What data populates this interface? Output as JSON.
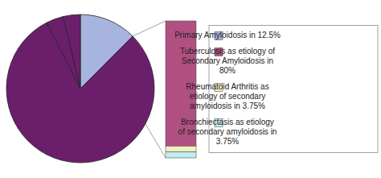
{
  "chart_data": [
    {
      "type": "pie",
      "categories": [
        "Primary Amyloidosis in 12.5%",
        null,
        null,
        null
      ],
      "values": [
        12.5,
        80.0,
        3.75,
        3.75
      ],
      "colors": [
        "#a8b4e0",
        "#6b1f6b",
        "#6b1f6b",
        "#6b1f6b"
      ],
      "legend": "right"
    },
    {
      "type": "bar",
      "stacked": true,
      "series": [
        {
          "name": "Tuberculosis as etiology of\nSecondary Amyloidosis in\n80%",
          "color": "#b05080",
          "values": [
            0.9142857142857143
          ]
        },
        {
          "name": "Rheumatoid Arthritis as\netiology of secondary\namyloidosis in 3.75%",
          "color": "#f5f0c0",
          "values": [
            0.04285714285714286
          ]
        },
        {
          "name": "Bronchiectasis as etiology\nof secondary amyloidosis in\n3.75%",
          "color": "#c0eef0",
          "values": [
            0.04285714285714286
          ]
        }
      ],
      "ylim": [
        0,
        1
      ],
      "tick_labels": false
    }
  ]
}
